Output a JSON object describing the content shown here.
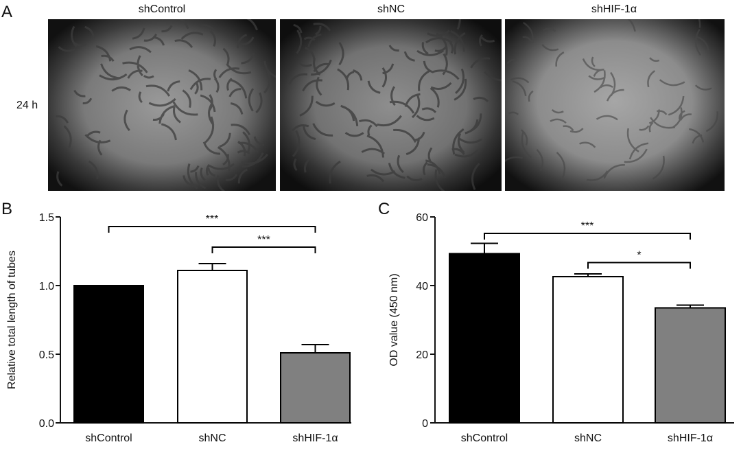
{
  "panels": {
    "a_label": "A",
    "b_label": "B",
    "c_label": "C"
  },
  "microscopy": {
    "row_label": "24 h",
    "columns": [
      "shControl",
      "shNC",
      "shHIF-1α"
    ]
  },
  "colors": {
    "black_bar": "#000000",
    "white_bar": "#ffffff",
    "gray_bar": "#808080",
    "axis": "#111111"
  },
  "chart_data": [
    {
      "type": "bar",
      "categories": [
        "shControl",
        "shNC",
        "shHIF-1α"
      ],
      "values": [
        1.0,
        1.11,
        0.51
      ],
      "errors": [
        0,
        0.05,
        0.06
      ],
      "bar_colors": [
        "#000000",
        "#ffffff",
        "#808080"
      ],
      "ylabel": "Relative total length of tubes",
      "ylim": [
        0,
        1.5
      ],
      "yticks": [
        0.0,
        0.5,
        1.0,
        1.5
      ],
      "ytick_labels": [
        "0.0",
        "0.5",
        "1.0",
        "1.5"
      ],
      "significance": [
        {
          "from": 0,
          "to": 2,
          "label": "***",
          "level": 1.43
        },
        {
          "from": 1,
          "to": 2,
          "label": "***",
          "level": 1.28
        }
      ]
    },
    {
      "type": "bar",
      "categories": [
        "shControl",
        "shNC",
        "shHIF-1α"
      ],
      "values": [
        49.3,
        42.6,
        33.5
      ],
      "errors": [
        3.0,
        0.8,
        0.8
      ],
      "bar_colors": [
        "#000000",
        "#ffffff",
        "#808080"
      ],
      "ylabel": "OD value (450 nm)",
      "ylim": [
        0,
        60
      ],
      "yticks": [
        0,
        20,
        40,
        60
      ],
      "ytick_labels": [
        "0",
        "20",
        "40",
        "60"
      ],
      "significance": [
        {
          "from": 0,
          "to": 2,
          "label": "***",
          "level": 55.2
        },
        {
          "from": 1,
          "to": 2,
          "label": "*",
          "level": 46.7
        }
      ]
    }
  ]
}
